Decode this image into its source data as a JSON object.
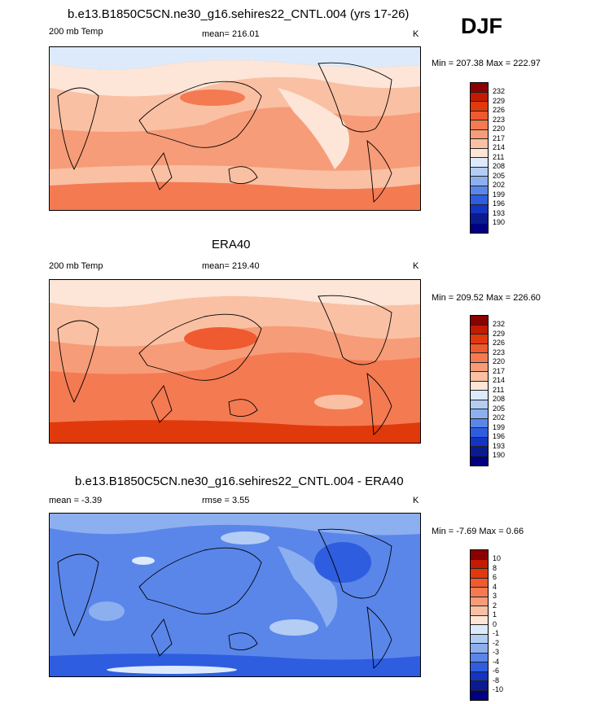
{
  "season": "DJF",
  "panels": [
    {
      "title": "b.e13.B1850C5CN.ne30_g16.sehires22_CNTL.004 (yrs 17-26)",
      "left_label": "200 mb Temp",
      "center_label": "mean= 216.01",
      "units": "K",
      "minmax": "Min = 207.38 Max = 222.97",
      "levels": [
        "232",
        "229",
        "226",
        "223",
        "220",
        "217",
        "214",
        "211",
        "208",
        "205",
        "202",
        "199",
        "196",
        "193",
        "190"
      ],
      "colors": [
        "#8b0000",
        "#c41a00",
        "#e03a0c",
        "#ef5a30",
        "#f47a52",
        "#f79c78",
        "#fac0a3",
        "#fde5d7",
        "#dceafb",
        "#b3cdf5",
        "#8caff0",
        "#5a86ea",
        "#2e5de0",
        "#1335c2",
        "#0a1b91",
        "#000080"
      ]
    },
    {
      "title": "ERA40",
      "left_label": "200 mb Temp",
      "center_label": "mean= 219.40",
      "units": "K",
      "minmax": "Min = 209.52 Max = 226.60",
      "levels": [
        "232",
        "229",
        "226",
        "223",
        "220",
        "217",
        "214",
        "211",
        "208",
        "205",
        "202",
        "199",
        "196",
        "193",
        "190"
      ],
      "colors": [
        "#8b0000",
        "#c41a00",
        "#e03a0c",
        "#ef5a30",
        "#f47a52",
        "#f79c78",
        "#fac0a3",
        "#fde5d7",
        "#dceafb",
        "#b3cdf5",
        "#8caff0",
        "#5a86ea",
        "#2e5de0",
        "#1335c2",
        "#0a1b91",
        "#000080"
      ]
    },
    {
      "title": "b.e13.B1850C5CN.ne30_g16.sehires22_CNTL.004 - ERA40",
      "left_label": "mean =  -3.39",
      "center_label": "rmse =   3.55",
      "units": "K",
      "minmax": "Min =  -7.69 Max =   0.66",
      "levels": [
        "10",
        "8",
        "6",
        "4",
        "3",
        "2",
        "1",
        "0",
        "-1",
        "-2",
        "-3",
        "-4",
        "-6",
        "-8",
        "-10"
      ],
      "colors": [
        "#8b0000",
        "#c41a00",
        "#e03a0c",
        "#ef5a30",
        "#f47a52",
        "#f79c78",
        "#fac0a3",
        "#fde5d7",
        "#dceafb",
        "#b3cdf5",
        "#8caff0",
        "#5a86ea",
        "#2e5de0",
        "#1335c2",
        "#0a1b91",
        "#000080"
      ]
    }
  ]
}
